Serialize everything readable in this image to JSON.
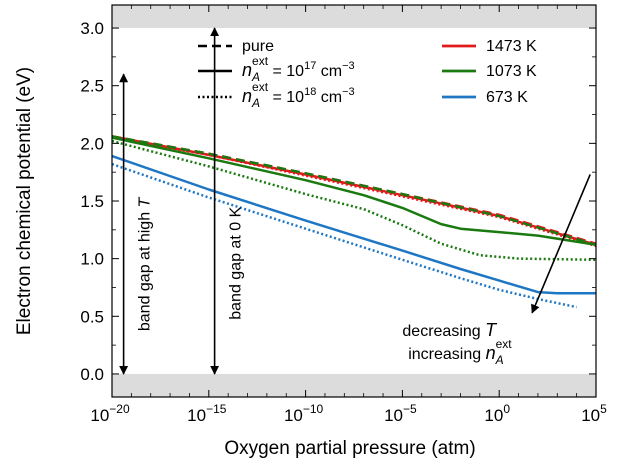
{
  "chart_data": {
    "type": "line",
    "xlabel": "Oxygen partial pressure (atm)",
    "ylabel": "Electron chemical potential (eV)",
    "x_scale": "log10",
    "xlim": [
      1e-20,
      100000.0
    ],
    "ylim": [
      -0.2,
      3.2
    ],
    "x_ticks": [
      {
        "exp": -20,
        "label": "10",
        "sup": "−20"
      },
      {
        "exp": -15,
        "label": "10",
        "sup": "−15"
      },
      {
        "exp": -10,
        "label": "10",
        "sup": "−10"
      },
      {
        "exp": -5,
        "label": "10",
        "sup": "−5"
      },
      {
        "exp": 0,
        "label": "10",
        "sup": "0"
      },
      {
        "exp": 5,
        "label": "10",
        "sup": "5"
      }
    ],
    "y_ticks": [
      {
        "v": 0.0,
        "label": "0.0"
      },
      {
        "v": 0.5,
        "label": "0.5"
      },
      {
        "v": 1.0,
        "label": "1.0"
      },
      {
        "v": 1.5,
        "label": "1.5"
      },
      {
        "v": 2.0,
        "label": "2.0"
      },
      {
        "v": 2.5,
        "label": "2.5"
      },
      {
        "v": 3.0,
        "label": "3.0"
      }
    ],
    "shaded_bands": [
      {
        "y": [
          -0.2,
          0.0
        ],
        "color": "#dcdcdc"
      },
      {
        "y": [
          3.0,
          3.2
        ],
        "color": "#dcdcdc"
      }
    ],
    "colors": {
      "1473 K": "#e31a1c",
      "1073 K": "#1a7a10",
      "673 K": "#1f77c4"
    },
    "line_styles": {
      "pure": "dashed",
      "1e17": "solid",
      "1e18": "dotted"
    },
    "series": [
      {
        "name": "1473 K pure",
        "color_key": "1473 K",
        "style": "pure",
        "points": [
          [
            -20,
            2.06
          ],
          [
            -15,
            1.91
          ],
          [
            -10,
            1.74
          ],
          [
            -5,
            1.56
          ],
          [
            0,
            1.38
          ],
          [
            5,
            1.13
          ]
        ]
      },
      {
        "name": "1473 K 1e17",
        "color_key": "1473 K",
        "style": "1e17",
        "points": [
          [
            -20,
            2.06
          ],
          [
            -15,
            1.9
          ],
          [
            -10,
            1.73
          ],
          [
            -5,
            1.55
          ],
          [
            0,
            1.37
          ],
          [
            5,
            1.12
          ]
        ]
      },
      {
        "name": "1473 K 1e18",
        "color_key": "1473 K",
        "style": "1e18",
        "points": [
          [
            -20,
            2.05
          ],
          [
            -15,
            1.9
          ],
          [
            -10,
            1.72
          ],
          [
            -5,
            1.54
          ],
          [
            0,
            1.36
          ],
          [
            5,
            1.11
          ]
        ]
      },
      {
        "name": "1073 K pure",
        "color_key": "1073 K",
        "style": "pure",
        "points": [
          [
            -20,
            2.06
          ],
          [
            -15,
            1.91
          ],
          [
            -10,
            1.74
          ],
          [
            -5,
            1.56
          ],
          [
            0,
            1.37
          ],
          [
            5,
            1.12
          ]
        ]
      },
      {
        "name": "1073 K 1e17",
        "color_key": "1073 K",
        "style": "1e17",
        "points": [
          [
            -20,
            2.05
          ],
          [
            -15,
            1.87
          ],
          [
            -10,
            1.68
          ],
          [
            -7,
            1.55
          ],
          [
            -5,
            1.44
          ],
          [
            -3,
            1.3
          ],
          [
            -2,
            1.26
          ],
          [
            0,
            1.23
          ],
          [
            2,
            1.2
          ],
          [
            5,
            1.12
          ]
        ]
      },
      {
        "name": "1073 K 1e18",
        "color_key": "1073 K",
        "style": "1e18",
        "points": [
          [
            -20,
            2.02
          ],
          [
            -15,
            1.8
          ],
          [
            -10,
            1.56
          ],
          [
            -7,
            1.43
          ],
          [
            -5,
            1.29
          ],
          [
            -3,
            1.13
          ],
          [
            -1,
            1.03
          ],
          [
            1,
            1.0
          ],
          [
            5,
            0.99
          ]
        ]
      },
      {
        "name": "673 K 1e17",
        "color_key": "673 K",
        "style": "1e17",
        "points": [
          [
            -20,
            1.89
          ],
          [
            -15,
            1.6
          ],
          [
            -10,
            1.33
          ],
          [
            -5,
            1.07
          ],
          [
            -2,
            0.91
          ],
          [
            0,
            0.81
          ],
          [
            2,
            0.71
          ],
          [
            3,
            0.7
          ],
          [
            5,
            0.7
          ]
        ]
      },
      {
        "name": "673 K 1e18",
        "color_key": "673 K",
        "style": "1e18",
        "points": [
          [
            -20,
            1.82
          ],
          [
            -15,
            1.53
          ],
          [
            -10,
            1.26
          ],
          [
            -5,
            0.99
          ],
          [
            -2,
            0.83
          ],
          [
            0,
            0.73
          ],
          [
            2,
            0.65
          ],
          [
            4,
            0.58
          ]
        ]
      }
    ],
    "legend": {
      "placement": "top",
      "style_entries": [
        {
          "style": "pure",
          "label": "pure"
        },
        {
          "style": "1e17",
          "prefix": "n",
          "sub": "A",
          "sup": "ext",
          "text": " = 10",
          "exp": "17",
          "unit": " cm",
          "unit_exp": "−3"
        },
        {
          "style": "1e18",
          "prefix": "n",
          "sub": "A",
          "sup": "ext",
          "text": " = 10",
          "exp": "18",
          "unit": " cm",
          "unit_exp": "−3"
        }
      ],
      "color_entries": [
        {
          "key": "1473 K",
          "label": "1473 K"
        },
        {
          "key": "1073 K",
          "label": "1073 K"
        },
        {
          "key": "673 K",
          "label": "673 K"
        }
      ]
    },
    "annotations": {
      "band_gap_high_T": {
        "text": "band gap at high ",
        "italic": "T",
        "x_exp": -19.4,
        "y_range": [
          0.0,
          2.6
        ]
      },
      "band_gap_0K": {
        "text": "band gap at 0 K",
        "x_exp": -14.7,
        "y_range": [
          0.0,
          3.0
        ]
      },
      "trend": {
        "line1": "decreasing ",
        "line1_italic": "T",
        "line2": "increasing ",
        "line2_var": "n",
        "line2_sub": "A",
        "line2_sup": "ext",
        "arrow_from": [
          4.7,
          1.73
        ],
        "arrow_to": [
          1.7,
          0.53
        ]
      }
    }
  }
}
